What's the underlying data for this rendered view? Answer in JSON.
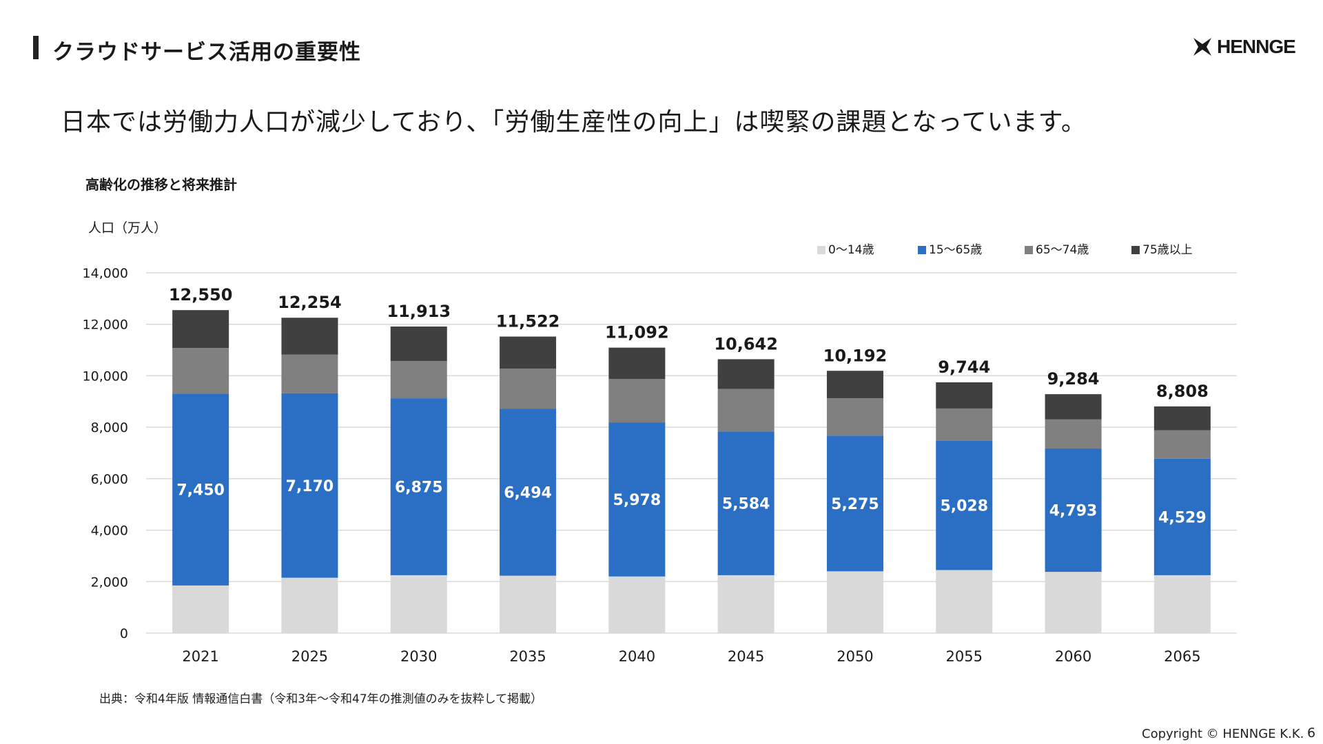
{
  "header": {
    "title": "クラウドサービス活用の重要性",
    "logo_text": "HENNGE"
  },
  "lead_text": "日本では労働力人口が減少しており、「労働生産性の向上」は喫緊の課題となっています。",
  "chart_title": "高齢化の推移と将来推計",
  "footer": {
    "source": "出典：令和4年版 情報通信白書（令和3年〜令和47年の推測値のみを抜粋して掲載）",
    "copyright": "Copyright © HENNGE K.K.",
    "page_number": "6"
  },
  "colors": {
    "age_0_14": "#d9d9d9",
    "age_15_65": "#2a6fc4",
    "age_65_74": "#808080",
    "age_75_plus": "#404040",
    "grid": "#d9d9d9"
  },
  "chart_data": {
    "type": "bar",
    "stacked": true,
    "title": "高齢化の推移と将来推計",
    "ylabel": "人口（万人）",
    "xlabel": "",
    "ylim": [
      0,
      14000
    ],
    "yticks": [
      "0",
      "2,000",
      "4,000",
      "6,000",
      "8,000",
      "10,000",
      "12,000",
      "14,000"
    ],
    "ytick_values": [
      0,
      2000,
      4000,
      6000,
      8000,
      10000,
      12000,
      14000
    ],
    "grid": true,
    "legend_position": "top-right",
    "categories": [
      "2021",
      "2025",
      "2030",
      "2035",
      "2040",
      "2045",
      "2050",
      "2055",
      "2060",
      "2065"
    ],
    "series": [
      {
        "name": "0〜14歳",
        "values": [
          1850,
          2150,
          2250,
          2230,
          2200,
          2250,
          2400,
          2450,
          2380,
          2250
        ]
      },
      {
        "name": "15〜65歳",
        "values": [
          7450,
          7170,
          6875,
          6494,
          5978,
          5584,
          5275,
          5028,
          4793,
          4529
        ]
      },
      {
        "name": "65〜74歳",
        "values": [
          1780,
          1500,
          1450,
          1550,
          1700,
          1650,
          1450,
          1250,
          1130,
          1100
        ]
      },
      {
        "name": "75歳以上",
        "values": [
          1470,
          1434,
          1338,
          1248,
          1214,
          1158,
          1067,
          1016,
          981,
          929
        ]
      }
    ],
    "segment_labels_series": "15〜65歳",
    "segment_labels": [
      "7,450",
      "7,170",
      "6,875",
      "6,494",
      "5,978",
      "5,584",
      "5,275",
      "5,028",
      "4,793",
      "4,529"
    ],
    "total_labels": [
      "12,550",
      "12,254",
      "11,913",
      "11,522",
      "11,092",
      "10,642",
      "10,192",
      "9,744",
      "9,284",
      "8,808"
    ],
    "totals": [
      12550,
      12254,
      11913,
      11522,
      11092,
      10642,
      10192,
      9744,
      9284,
      8808
    ]
  }
}
